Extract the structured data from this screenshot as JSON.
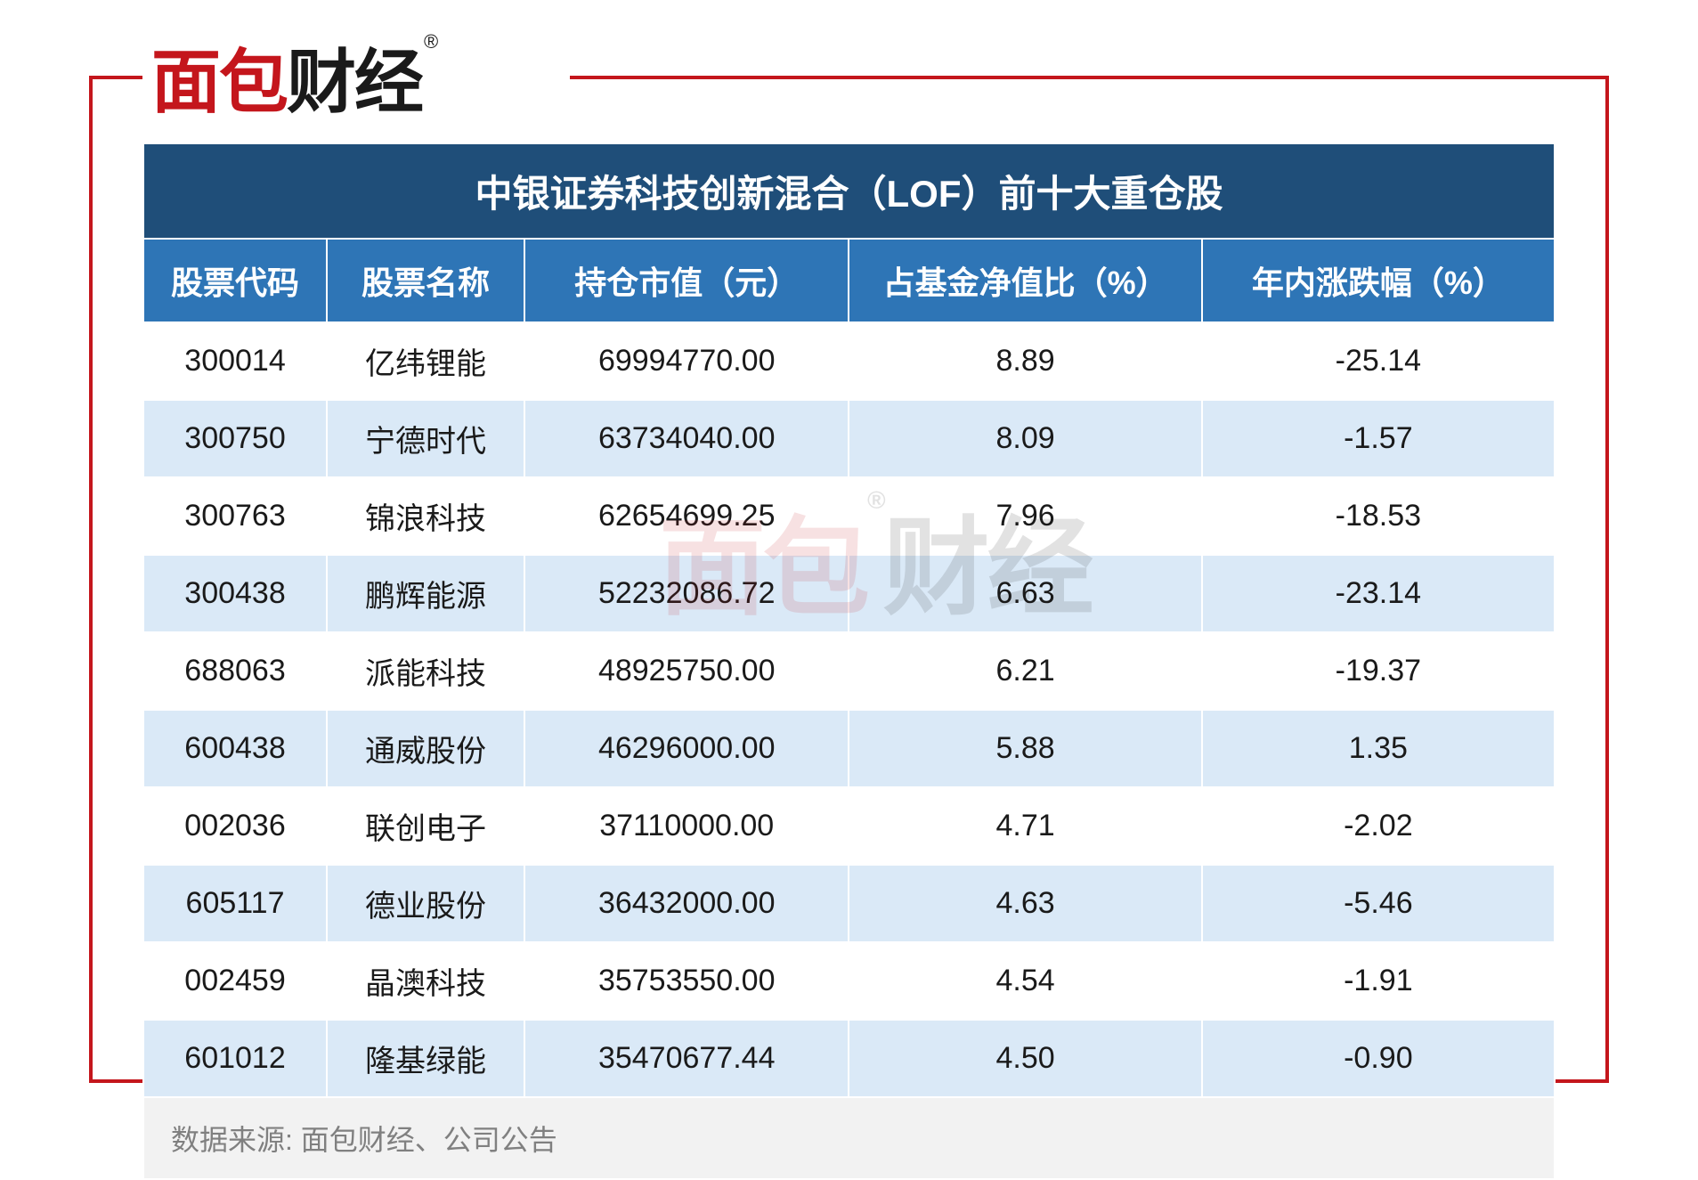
{
  "logo": {
    "part1": "面",
    "part2": "包",
    "part3": "财经",
    "reg": "®"
  },
  "table": {
    "title": "中银证券科技创新混合（LOF）前十大重仓股",
    "columns": [
      "股票代码",
      "股票名称",
      "持仓市值（元）",
      "占基金净值比（%）",
      "年内涨跌幅（%）"
    ],
    "rows": [
      [
        "300014",
        "亿纬锂能",
        "69994770.00",
        "8.89",
        "-25.14"
      ],
      [
        "300750",
        "宁德时代",
        "63734040.00",
        "8.09",
        "-1.57"
      ],
      [
        "300763",
        "锦浪科技",
        "62654699.25",
        "7.96",
        "-18.53"
      ],
      [
        "300438",
        "鹏辉能源",
        "52232086.72",
        "6.63",
        "-23.14"
      ],
      [
        "688063",
        "派能科技",
        "48925750.00",
        "6.21",
        "-19.37"
      ],
      [
        "600438",
        "通威股份",
        "46296000.00",
        "5.88",
        "1.35"
      ],
      [
        "002036",
        "联创电子",
        "37110000.00",
        "4.71",
        "-2.02"
      ],
      [
        "605117",
        "德业股份",
        "36432000.00",
        "4.63",
        "-5.46"
      ],
      [
        "002459",
        "晶澳科技",
        "35753550.00",
        "4.54",
        "-1.91"
      ],
      [
        "601012",
        "隆基绿能",
        "35470677.44",
        "4.50",
        "-0.90"
      ]
    ],
    "source": "数据来源: 面包财经、公司公告"
  },
  "colors": {
    "accent_red": "#c4161c",
    "header_dark": "#1f4e79",
    "header_blue": "#2e75b6",
    "row_alt": "#dae9f7",
    "source_bg": "#f2f2f2",
    "source_text": "#808080"
  }
}
